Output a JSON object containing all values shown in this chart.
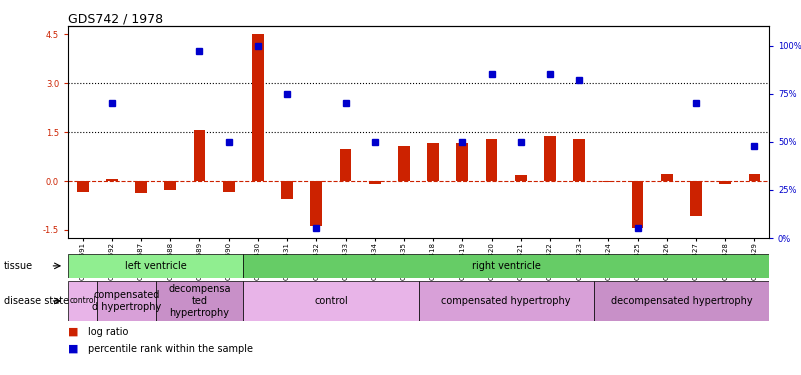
{
  "title": "GDS742 / 1978",
  "samples": [
    "GSM28691",
    "GSM28692",
    "GSM28687",
    "GSM28688",
    "GSM28689",
    "GSM28690",
    "GSM28430",
    "GSM28431",
    "GSM28432",
    "GSM28433",
    "GSM28434",
    "GSM28435",
    "GSM28418",
    "GSM28419",
    "GSM28420",
    "GSM28421",
    "GSM28422",
    "GSM28423",
    "GSM28424",
    "GSM28425",
    "GSM28426",
    "GSM28427",
    "GSM28428",
    "GSM28429"
  ],
  "log_ratio": [
    -0.35,
    0.07,
    -0.38,
    -0.28,
    1.58,
    -0.33,
    4.5,
    -0.55,
    -1.38,
    0.98,
    -0.1,
    1.08,
    1.18,
    1.18,
    1.28,
    0.18,
    1.38,
    1.28,
    -0.03,
    -1.43,
    0.23,
    -1.08,
    -0.1,
    0.23
  ],
  "pct_rank_val": [
    null,
    70,
    null,
    null,
    97,
    50,
    100,
    75,
    5,
    70,
    50,
    null,
    null,
    50,
    85,
    50,
    85,
    82,
    null,
    5,
    null,
    70,
    null,
    48
  ],
  "tissue_regions": [
    {
      "label": "left ventricle",
      "start": 0,
      "end": 5,
      "color": "#90ee90"
    },
    {
      "label": "right ventricle",
      "start": 6,
      "end": 23,
      "color": "#66cc66"
    }
  ],
  "disease_regions": [
    {
      "label": "control",
      "start": 0,
      "end": 0,
      "color": "#e8b4e8"
    },
    {
      "label": "compensated\nd hypertrophy",
      "start": 1,
      "end": 2,
      "color": "#d8a0d8"
    },
    {
      "label": "decompensa\nted\nhypertrophy",
      "start": 3,
      "end": 5,
      "color": "#c890c8"
    },
    {
      "label": "control",
      "start": 6,
      "end": 11,
      "color": "#e8b4e8"
    },
    {
      "label": "compensated hypertrophy",
      "start": 12,
      "end": 17,
      "color": "#d8a0d8"
    },
    {
      "label": "decompensated hypertrophy",
      "start": 18,
      "end": 23,
      "color": "#c890c8"
    }
  ],
  "ylim_left": [
    -1.75,
    4.75
  ],
  "ylim_right": [
    0,
    110
  ],
  "yticks_left": [
    -1.5,
    0.0,
    1.5,
    3.0,
    4.5
  ],
  "yticks_right": [
    0,
    25,
    50,
    75,
    100
  ],
  "hlines": [
    1.5,
    3.0
  ],
  "bar_color": "#cc2200",
  "dot_color": "#0000cc",
  "zero_line_color": "#cc2200",
  "background_color": "#ffffff",
  "title_fontsize": 9,
  "tick_fontsize": 6,
  "label_fontsize": 7,
  "bar_width": 0.4
}
